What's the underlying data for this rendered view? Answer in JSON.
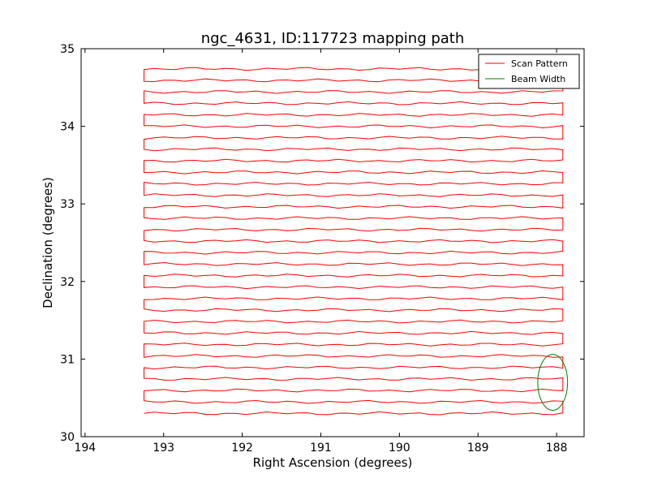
{
  "chart_data": {
    "type": "line",
    "title": "ngc_4631, ID:117723 mapping path",
    "xlabel": "Right Ascension (degrees)",
    "ylabel": "Declination (degrees)",
    "xlim": [
      194.05,
      187.65
    ],
    "ylim": [
      30.0,
      35.0
    ],
    "x_inverted": true,
    "xticks": [
      194,
      193,
      192,
      191,
      190,
      189,
      188
    ],
    "yticks": [
      30,
      31,
      32,
      33,
      34,
      35
    ],
    "xtick_labels": [
      "194",
      "193",
      "192",
      "191",
      "190",
      "189",
      "188"
    ],
    "ytick_labels": [
      "30",
      "31",
      "32",
      "33",
      "34",
      "35"
    ],
    "grid": false,
    "legend": {
      "placement": "top-right",
      "entries": [
        "Scan Pattern",
        "Beam Width"
      ]
    },
    "series": [
      {
        "name": "Scan Pattern",
        "color": "#ff0000",
        "ra_start": 193.25,
        "ra_end": 187.8,
        "dec_start": 30.3,
        "dec_step": 0.148,
        "num_rows": 31
      },
      {
        "name": "Beam Width",
        "color": "#008000",
        "shape": "circle",
        "center_ra": 188.05,
        "center_dec": 30.7,
        "radius_ra": 0.19,
        "radius_dec": 0.36
      }
    ]
  }
}
